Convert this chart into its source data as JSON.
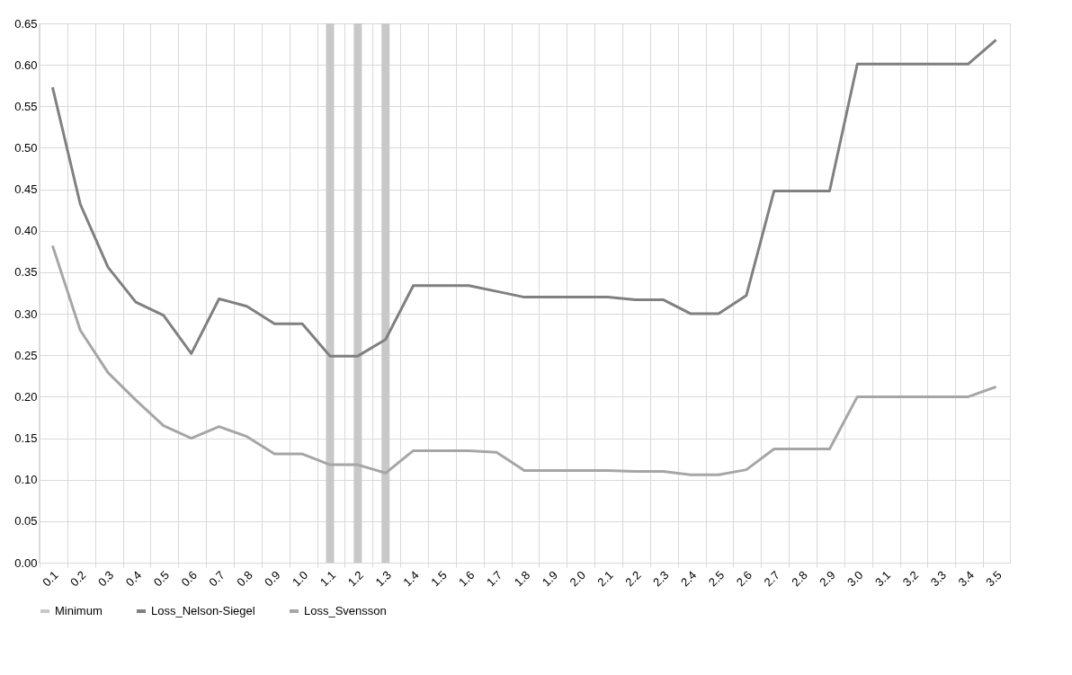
{
  "chart_data": {
    "type": "line",
    "categories": [
      "0.1",
      "0.2",
      "0.3",
      "0.4",
      "0.5",
      "0.6",
      "0.7",
      "0.8",
      "0.9",
      "1.0",
      "1.1",
      "1.2",
      "1.3",
      "1.4",
      "1.5",
      "1.6",
      "1.7",
      "1.8",
      "1.9",
      "2.0",
      "2.1",
      "2.2",
      "2.3",
      "2.4",
      "2.5",
      "2.6",
      "2.7",
      "2.8",
      "2.9",
      "3.0",
      "3.1",
      "3.2",
      "3.3",
      "3.4",
      "3.5"
    ],
    "series": [
      {
        "name": "Minimum",
        "type": "bar",
        "color": "#c8c8c8",
        "values": [
          null,
          null,
          null,
          null,
          null,
          null,
          null,
          null,
          null,
          null,
          0.65,
          0.65,
          0.65,
          null,
          null,
          null,
          null,
          null,
          null,
          null,
          null,
          null,
          null,
          null,
          null,
          null,
          null,
          null,
          null,
          null,
          null,
          null,
          null,
          null,
          null
        ]
      },
      {
        "name": "Loss_Nelson-Siegel",
        "color": "#808080",
        "values": [
          0.573,
          0.432,
          0.356,
          0.314,
          0.298,
          0.252,
          0.318,
          0.309,
          0.288,
          0.288,
          0.249,
          0.249,
          0.269,
          0.334,
          0.334,
          0.334,
          0.327,
          0.32,
          0.32,
          0.32,
          0.32,
          0.317,
          0.317,
          0.3,
          0.3,
          0.322,
          0.448,
          0.448,
          0.448,
          0.601,
          0.601,
          0.601,
          0.601,
          0.601,
          0.63
        ]
      },
      {
        "name": "Loss_Svensson",
        "color": "#a6a6a6",
        "values": [
          0.382,
          0.28,
          0.229,
          0.196,
          0.165,
          0.15,
          0.164,
          0.152,
          0.131,
          0.131,
          0.118,
          0.118,
          0.108,
          0.135,
          0.135,
          0.135,
          0.133,
          0.111,
          0.111,
          0.111,
          0.111,
          0.11,
          0.11,
          0.106,
          0.106,
          0.112,
          0.137,
          0.137,
          0.137,
          0.2,
          0.2,
          0.2,
          0.2,
          0.2,
          0.212
        ]
      }
    ],
    "ylim": [
      0,
      0.65
    ],
    "yticks": [
      {
        "value": 0,
        "label": "0.00"
      },
      {
        "value": 0.05,
        "label": "0.05"
      },
      {
        "value": 0.1,
        "label": "0.10"
      },
      {
        "value": 0.15,
        "label": "0.15"
      },
      {
        "value": 0.2,
        "label": "0.20"
      },
      {
        "value": 0.25,
        "label": "0.25"
      },
      {
        "value": 0.3,
        "label": "0.30"
      },
      {
        "value": 0.35,
        "label": "0.35"
      },
      {
        "value": 0.4,
        "label": "0.40"
      },
      {
        "value": 0.45,
        "label": "0.45"
      },
      {
        "value": 0.5,
        "label": "0.50"
      },
      {
        "value": 0.55,
        "label": "0.55"
      },
      {
        "value": 0.6,
        "label": "0.60"
      },
      {
        "value": 0.65,
        "label": "0.65"
      }
    ],
    "grid": true,
    "legend": "bottom",
    "marker": "none",
    "line_style": "solid"
  }
}
